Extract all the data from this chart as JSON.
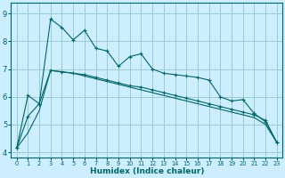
{
  "title": "",
  "xlabel": "Humidex (Indice chaleur)",
  "bg_color": "#cceeff",
  "line_color": "#006666",
  "grid_color": "#99cccc",
  "x_values": [
    0,
    1,
    2,
    3,
    4,
    5,
    6,
    7,
    8,
    9,
    10,
    11,
    12,
    13,
    14,
    15,
    16,
    17,
    18,
    19,
    20,
    21,
    22,
    23
  ],
  "line1_jagged": [
    4.15,
    6.05,
    5.75,
    8.8,
    8.5,
    8.05,
    8.4,
    7.75,
    7.65,
    7.1,
    7.45,
    7.55,
    7.0,
    6.85,
    6.8,
    6.75,
    6.7,
    6.6,
    6.0,
    5.85,
    5.9,
    5.4,
    5.1,
    4.35
  ],
  "line2_mid": [
    4.15,
    5.3,
    5.75,
    6.95,
    6.9,
    6.85,
    6.8,
    6.7,
    6.6,
    6.5,
    6.4,
    6.35,
    6.25,
    6.15,
    6.05,
    5.95,
    5.85,
    5.75,
    5.65,
    5.55,
    5.45,
    5.35,
    5.15,
    4.35
  ],
  "line3_smooth": [
    4.15,
    4.7,
    5.5,
    6.95,
    6.9,
    6.85,
    6.75,
    6.65,
    6.55,
    6.45,
    6.35,
    6.25,
    6.15,
    6.05,
    5.95,
    5.85,
    5.75,
    5.65,
    5.55,
    5.45,
    5.35,
    5.25,
    5.0,
    4.35
  ],
  "ylim": [
    3.8,
    9.4
  ],
  "yticks": [
    4,
    5,
    6,
    7,
    8,
    9
  ],
  "xlim": [
    -0.5,
    23.5
  ]
}
